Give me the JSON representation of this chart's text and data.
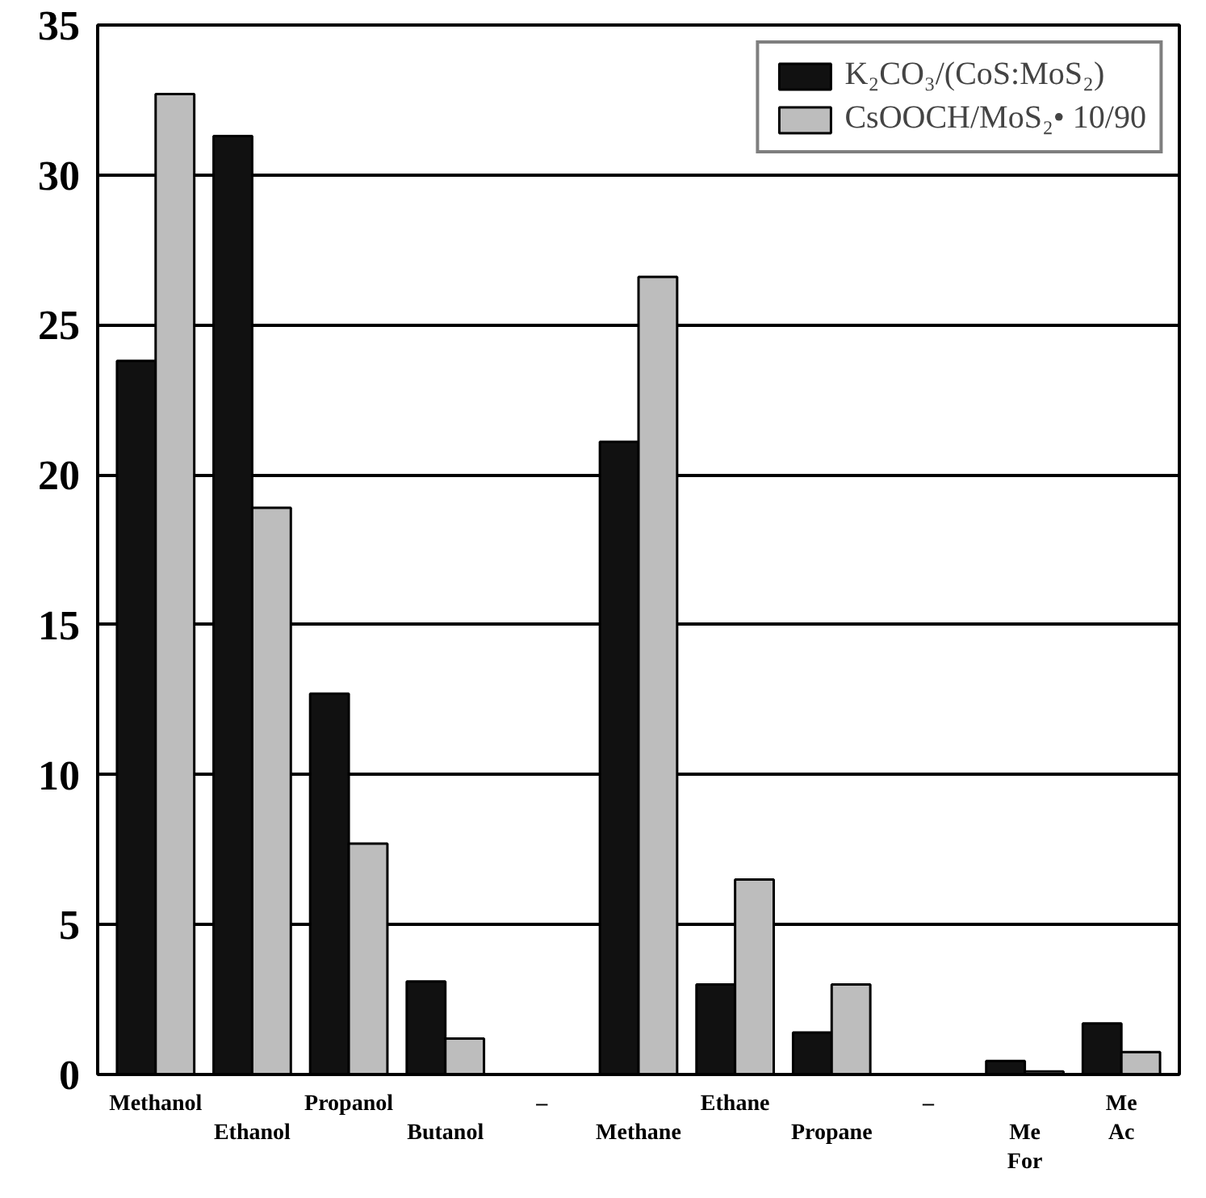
{
  "chart_data": {
    "type": "bar",
    "categories": [
      "Methanol",
      "Ethanol",
      "Propanol",
      "Butanol",
      "–",
      "Methane",
      "Ethane",
      "Propane",
      "–",
      "Me For",
      "Me Ac"
    ],
    "series": [
      {
        "name": "K₂CO₃/(CoS:MoS₂)",
        "color": "#111111",
        "values": [
          23.8,
          31.3,
          12.7,
          3.1,
          null,
          21.1,
          3.0,
          1.4,
          null,
          0.45,
          1.7
        ]
      },
      {
        "name": "CsOOCH/MoS₂• 10/90",
        "color": "#bdbdbd",
        "values": [
          32.7,
          18.9,
          7.7,
          1.2,
          null,
          26.6,
          6.5,
          3.0,
          null,
          0.1,
          0.75
        ]
      }
    ],
    "ylim": [
      0,
      35
    ],
    "yticks": [
      0,
      5,
      10,
      15,
      20,
      25,
      30,
      35
    ],
    "grid": "y",
    "legend": "top right"
  }
}
